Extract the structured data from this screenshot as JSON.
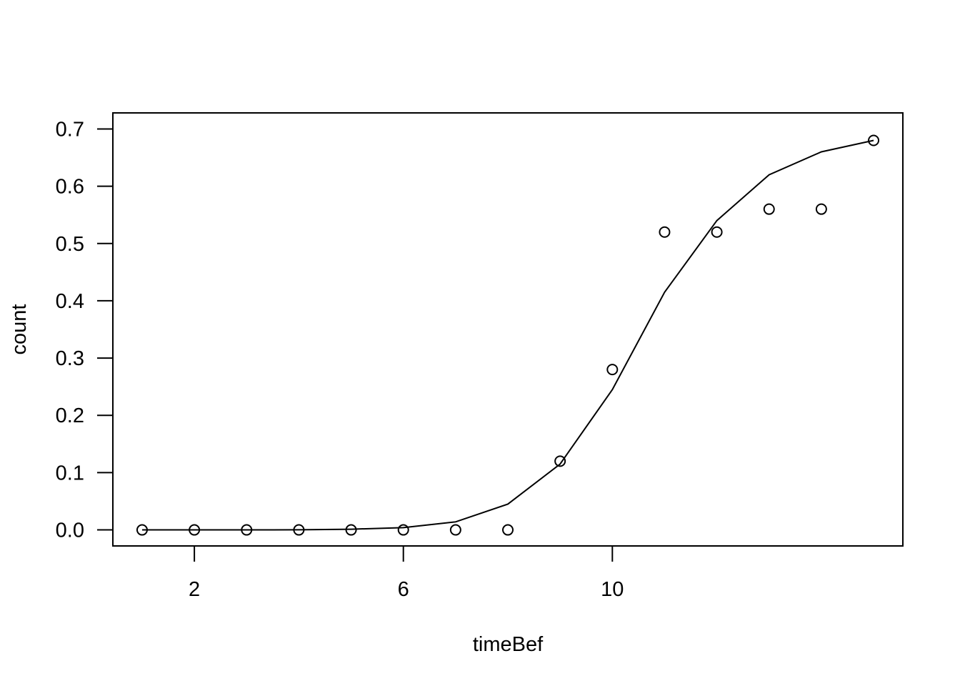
{
  "chart_data": {
    "type": "scatter",
    "xlabel": "timeBef",
    "ylabel": "count",
    "xlim": [
      0.44,
      15.56
    ],
    "ylim": [
      -0.028,
      0.728
    ],
    "x_ticks": [
      2,
      6,
      10
    ],
    "y_ticks": [
      0.0,
      0.1,
      0.2,
      0.3,
      0.4,
      0.5,
      0.6,
      0.7
    ],
    "y_tick_labels": [
      "0.0",
      "0.1",
      "0.2",
      "0.3",
      "0.4",
      "0.5",
      "0.6",
      "0.7"
    ],
    "grid": false,
    "legend": "none",
    "series": [
      {
        "type": "scatter",
        "marker": "open-circle",
        "color": "#000000",
        "x": [
          1,
          2,
          3,
          4,
          5,
          6,
          7,
          8,
          9,
          10,
          11,
          12,
          13,
          14,
          15
        ],
        "y": [
          0.0,
          0.0,
          0.0,
          0.0,
          0.0,
          0.0,
          0.0,
          0.0,
          0.12,
          0.28,
          0.52,
          0.52,
          0.56,
          0.56,
          0.68
        ]
      },
      {
        "type": "line",
        "color": "#000000",
        "x": [
          1,
          2,
          3,
          4,
          5,
          6,
          7,
          8,
          9,
          10,
          11,
          12,
          13,
          14,
          15
        ],
        "y": [
          0.0,
          0.0,
          0.0,
          0.0002,
          0.0012,
          0.004,
          0.014,
          0.045,
          0.115,
          0.245,
          0.415,
          0.54,
          0.62,
          0.66,
          0.68
        ]
      }
    ]
  }
}
